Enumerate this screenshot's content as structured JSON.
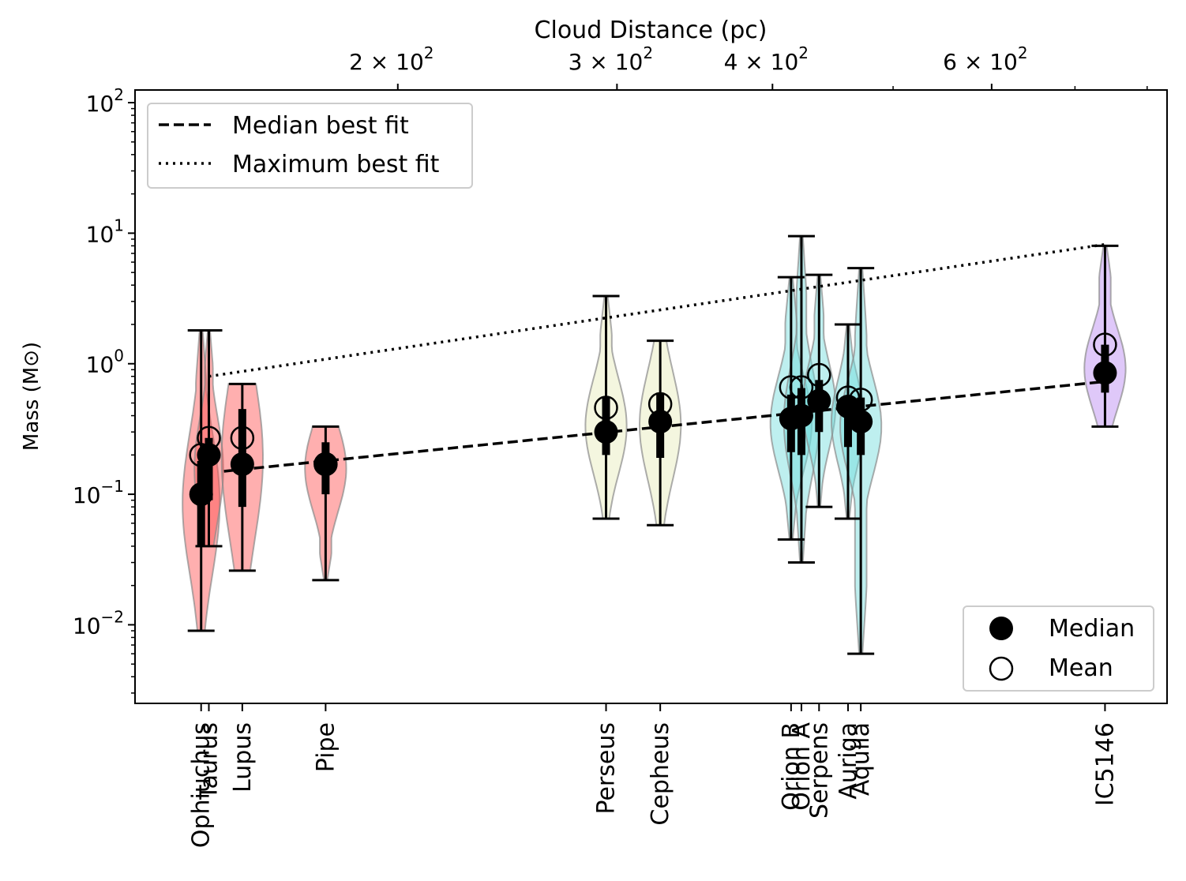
{
  "chart_data": {
    "type": "violin",
    "title": "",
    "top_xlabel": "Cloud Distance (pc)",
    "ylabel": "Mass (M⊙)",
    "yscale": "log",
    "xscale": "log",
    "xlim": [
      123,
      830
    ],
    "ylim": [
      0.0025,
      125
    ],
    "top_ticks": [
      {
        "value": 200,
        "label": "2 × 10",
        "sup": "2"
      },
      {
        "value": 300,
        "label": "3 × 10",
        "sup": "2"
      },
      {
        "value": 400,
        "label": "4 × 10",
        "sup": "2"
      },
      {
        "value": 600,
        "label": "6 × 10",
        "sup": "2"
      }
    ],
    "top_minor_ticks": [
      500,
      700,
      800
    ],
    "yticks": [
      {
        "value": 0.01,
        "base": "10",
        "exp": "−2"
      },
      {
        "value": 0.1,
        "base": "10",
        "exp": "−1"
      },
      {
        "value": 1,
        "base": "10",
        "exp": "0"
      },
      {
        "value": 10,
        "base": "10",
        "exp": "1"
      },
      {
        "value": 100,
        "base": "10",
        "exp": "2"
      }
    ],
    "clouds": [
      {
        "name": "Ophiuchus",
        "distance": 139,
        "color": "#ff4d4d",
        "min": 0.009,
        "max": 1.8,
        "q1": 0.04,
        "q3": 0.18,
        "median": 0.1,
        "mean": 0.2,
        "width": 0.018
      },
      {
        "name": "Taurus",
        "distance": 141,
        "color": "#ff4d4d",
        "min": 0.04,
        "max": 1.8,
        "q1": 0.09,
        "q3": 0.27,
        "median": 0.2,
        "mean": 0.27,
        "width": 0.014
      },
      {
        "name": "Lupus",
        "distance": 150,
        "color": "#ff4d4d",
        "min": 0.026,
        "max": 0.7,
        "q1": 0.08,
        "q3": 0.45,
        "median": 0.17,
        "mean": 0.27,
        "width": 0.02
      },
      {
        "name": "Pipe",
        "distance": 175,
        "color": "#ff4d4d",
        "min": 0.022,
        "max": 0.33,
        "q1": 0.1,
        "q3": 0.25,
        "median": 0.17,
        "mean": 0.17,
        "width": 0.02
      },
      {
        "name": "Perseus",
        "distance": 294,
        "color": "#e6ebb8",
        "min": 0.065,
        "max": 3.3,
        "q1": 0.2,
        "q3": 0.55,
        "median": 0.3,
        "mean": 0.46,
        "width": 0.02
      },
      {
        "name": "Cepheus",
        "distance": 325,
        "color": "#e6ebb8",
        "min": 0.058,
        "max": 1.5,
        "q1": 0.19,
        "q3": 0.6,
        "median": 0.36,
        "mean": 0.49,
        "width": 0.02
      },
      {
        "name": "Orion B",
        "distance": 414,
        "color": "#6fdcdc",
        "min": 0.045,
        "max": 4.6,
        "q1": 0.21,
        "q3": 0.58,
        "median": 0.38,
        "mean": 0.66,
        "width": 0.02
      },
      {
        "name": "Orion A",
        "distance": 422,
        "color": "#6fdcdc",
        "min": 0.03,
        "max": 9.5,
        "q1": 0.2,
        "q3": 0.65,
        "median": 0.4,
        "mean": 0.66,
        "width": 0.017
      },
      {
        "name": "Serpens",
        "distance": 436,
        "color": "#6fdcdc",
        "min": 0.08,
        "max": 4.8,
        "q1": 0.3,
        "q3": 0.75,
        "median": 0.52,
        "mean": 0.82,
        "width": 0.016
      },
      {
        "name": "Auriga",
        "distance": 460,
        "color": "#6fdcdc",
        "min": 0.065,
        "max": 2.0,
        "q1": 0.23,
        "q3": 0.56,
        "median": 0.47,
        "mean": 0.55,
        "width": 0.016
      },
      {
        "name": "Aquila",
        "distance": 471,
        "color": "#6fdcdc",
        "min": 0.006,
        "max": 5.4,
        "q1": 0.2,
        "q3": 0.55,
        "median": 0.36,
        "mean": 0.53,
        "width": 0.02
      },
      {
        "name": "IC5146",
        "distance": 740,
        "color": "#b884f2",
        "min": 0.33,
        "max": 8.0,
        "q1": 0.6,
        "q3": 1.4,
        "median": 0.85,
        "mean": 1.4,
        "width": 0.02
      }
    ],
    "fits": [
      {
        "name": "Median best fit",
        "style": "dashed",
        "points": [
          [
            145,
            0.15
          ],
          [
            740,
            0.73
          ]
        ]
      },
      {
        "name": "Maximum best fit",
        "style": "dotted",
        "points": [
          [
            141,
            0.8
          ],
          [
            740,
            8.2
          ]
        ]
      }
    ],
    "legend_top_left": [
      "Median best fit",
      "Maximum best fit"
    ],
    "legend_bottom_right": [
      "Median",
      "Mean"
    ]
  }
}
